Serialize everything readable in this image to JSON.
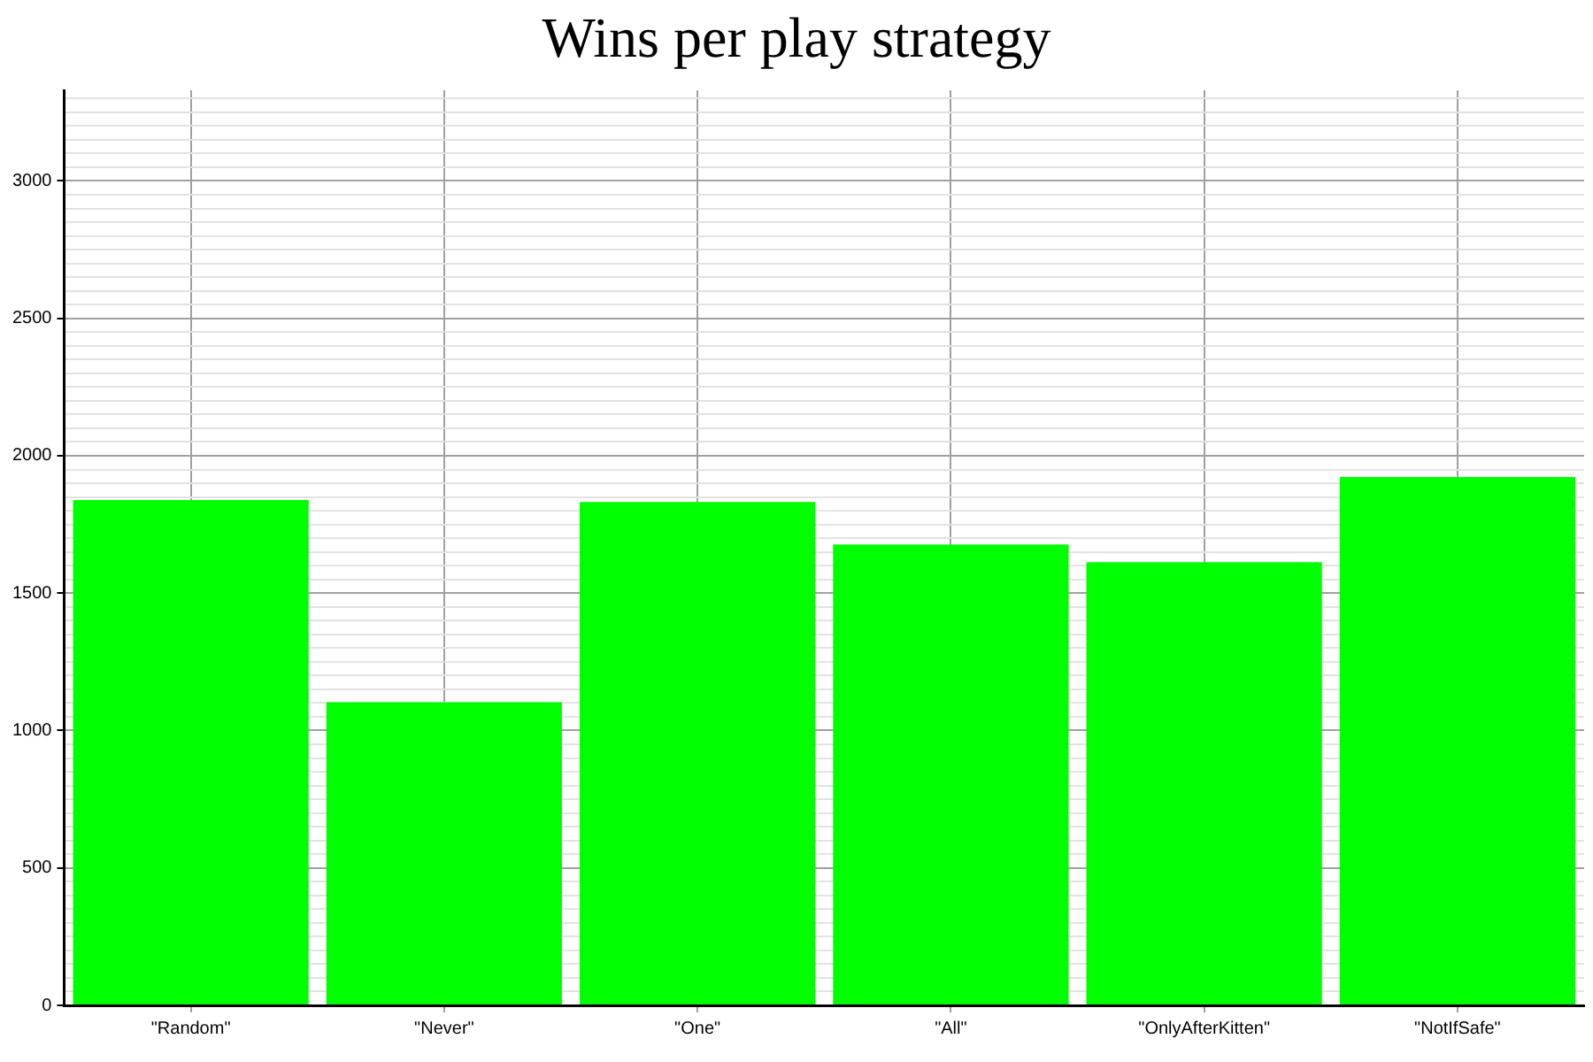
{
  "chart_data": {
    "type": "bar",
    "title": "Wins per play strategy",
    "categories": [
      "\"Random\"",
      "\"Never\"",
      "\"One\"",
      "\"All\"",
      "\"OnlyAfterKitten\"",
      "\"NotIfSafe\""
    ],
    "values": [
      1839,
      1103,
      1832,
      1677,
      1613,
      1923
    ],
    "color": "#00ff00",
    "ylim": [
      0,
      3330
    ],
    "yticks": [
      0,
      {
        "value": 50,
        "label": null
      },
      {
        "value": 100,
        "label": null
      },
      {
        "value": 150,
        "label": null
      },
      {
        "value": 200,
        "label": null
      },
      {
        "value": 250,
        "label": null
      },
      {
        "value": 300,
        "label": null
      },
      {
        "value": 350,
        "label": null
      },
      {
        "value": 400,
        "label": null
      },
      {
        "value": 450,
        "label": null
      },
      500,
      {
        "value": 550,
        "label": null
      },
      {
        "value": 600,
        "label": null
      },
      {
        "value": 650,
        "label": null
      },
      {
        "value": 700,
        "label": null
      },
      {
        "value": 750,
        "label": null
      },
      {
        "value": 800,
        "label": null
      },
      {
        "value": 850,
        "label": null
      },
      {
        "value": 900,
        "label": null
      },
      {
        "value": 950,
        "label": null
      },
      1000,
      {
        "value": 1050,
        "label": null
      },
      {
        "value": 1100,
        "label": null
      },
      {
        "value": 1150,
        "label": null
      },
      {
        "value": 1200,
        "label": null
      },
      {
        "value": 1250,
        "label": null
      },
      {
        "value": 1300,
        "label": null
      },
      {
        "value": 1350,
        "label": null
      },
      {
        "value": 1400,
        "label": null
      },
      {
        "value": 1450,
        "label": null
      },
      1500,
      {
        "value": 1550,
        "label": null
      },
      {
        "value": 1600,
        "label": null
      },
      {
        "value": 1650,
        "label": null
      },
      {
        "value": 1700,
        "label": null
      },
      {
        "value": 1750,
        "label": null
      },
      {
        "value": 1800,
        "label": null
      },
      {
        "value": 1850,
        "label": null
      },
      {
        "value": 1900,
        "label": null
      },
      {
        "value": 1950,
        "label": null
      },
      2000,
      {
        "value": 2050,
        "label": null
      },
      {
        "value": 2100,
        "label": null
      },
      {
        "value": 2150,
        "label": null
      },
      {
        "value": 2200,
        "label": null
      },
      {
        "value": 2250,
        "label": null
      },
      {
        "value": 2300,
        "label": null
      },
      {
        "value": 2350,
        "label": null
      },
      {
        "value": 2400,
        "label": null
      },
      {
        "value": 2450,
        "label": null
      },
      2500,
      {
        "value": 2550,
        "label": null
      },
      {
        "value": 2600,
        "label": null
      },
      {
        "value": 2650,
        "label": null
      },
      {
        "value": 2700,
        "label": null
      },
      {
        "value": 2750,
        "label": null
      },
      {
        "value": 2800,
        "label": null
      },
      {
        "value": 2850,
        "label": null
      },
      {
        "value": 2900,
        "label": null
      },
      {
        "value": 2950,
        "label": null
      },
      3000,
      {
        "value": 3050,
        "label": null
      },
      {
        "value": 3100,
        "label": null
      },
      {
        "value": 3150,
        "label": null
      },
      {
        "value": 3200,
        "label": null
      },
      {
        "value": 3250,
        "label": null
      },
      {
        "value": 3300,
        "label": null
      }
    ],
    "grid": true
  }
}
